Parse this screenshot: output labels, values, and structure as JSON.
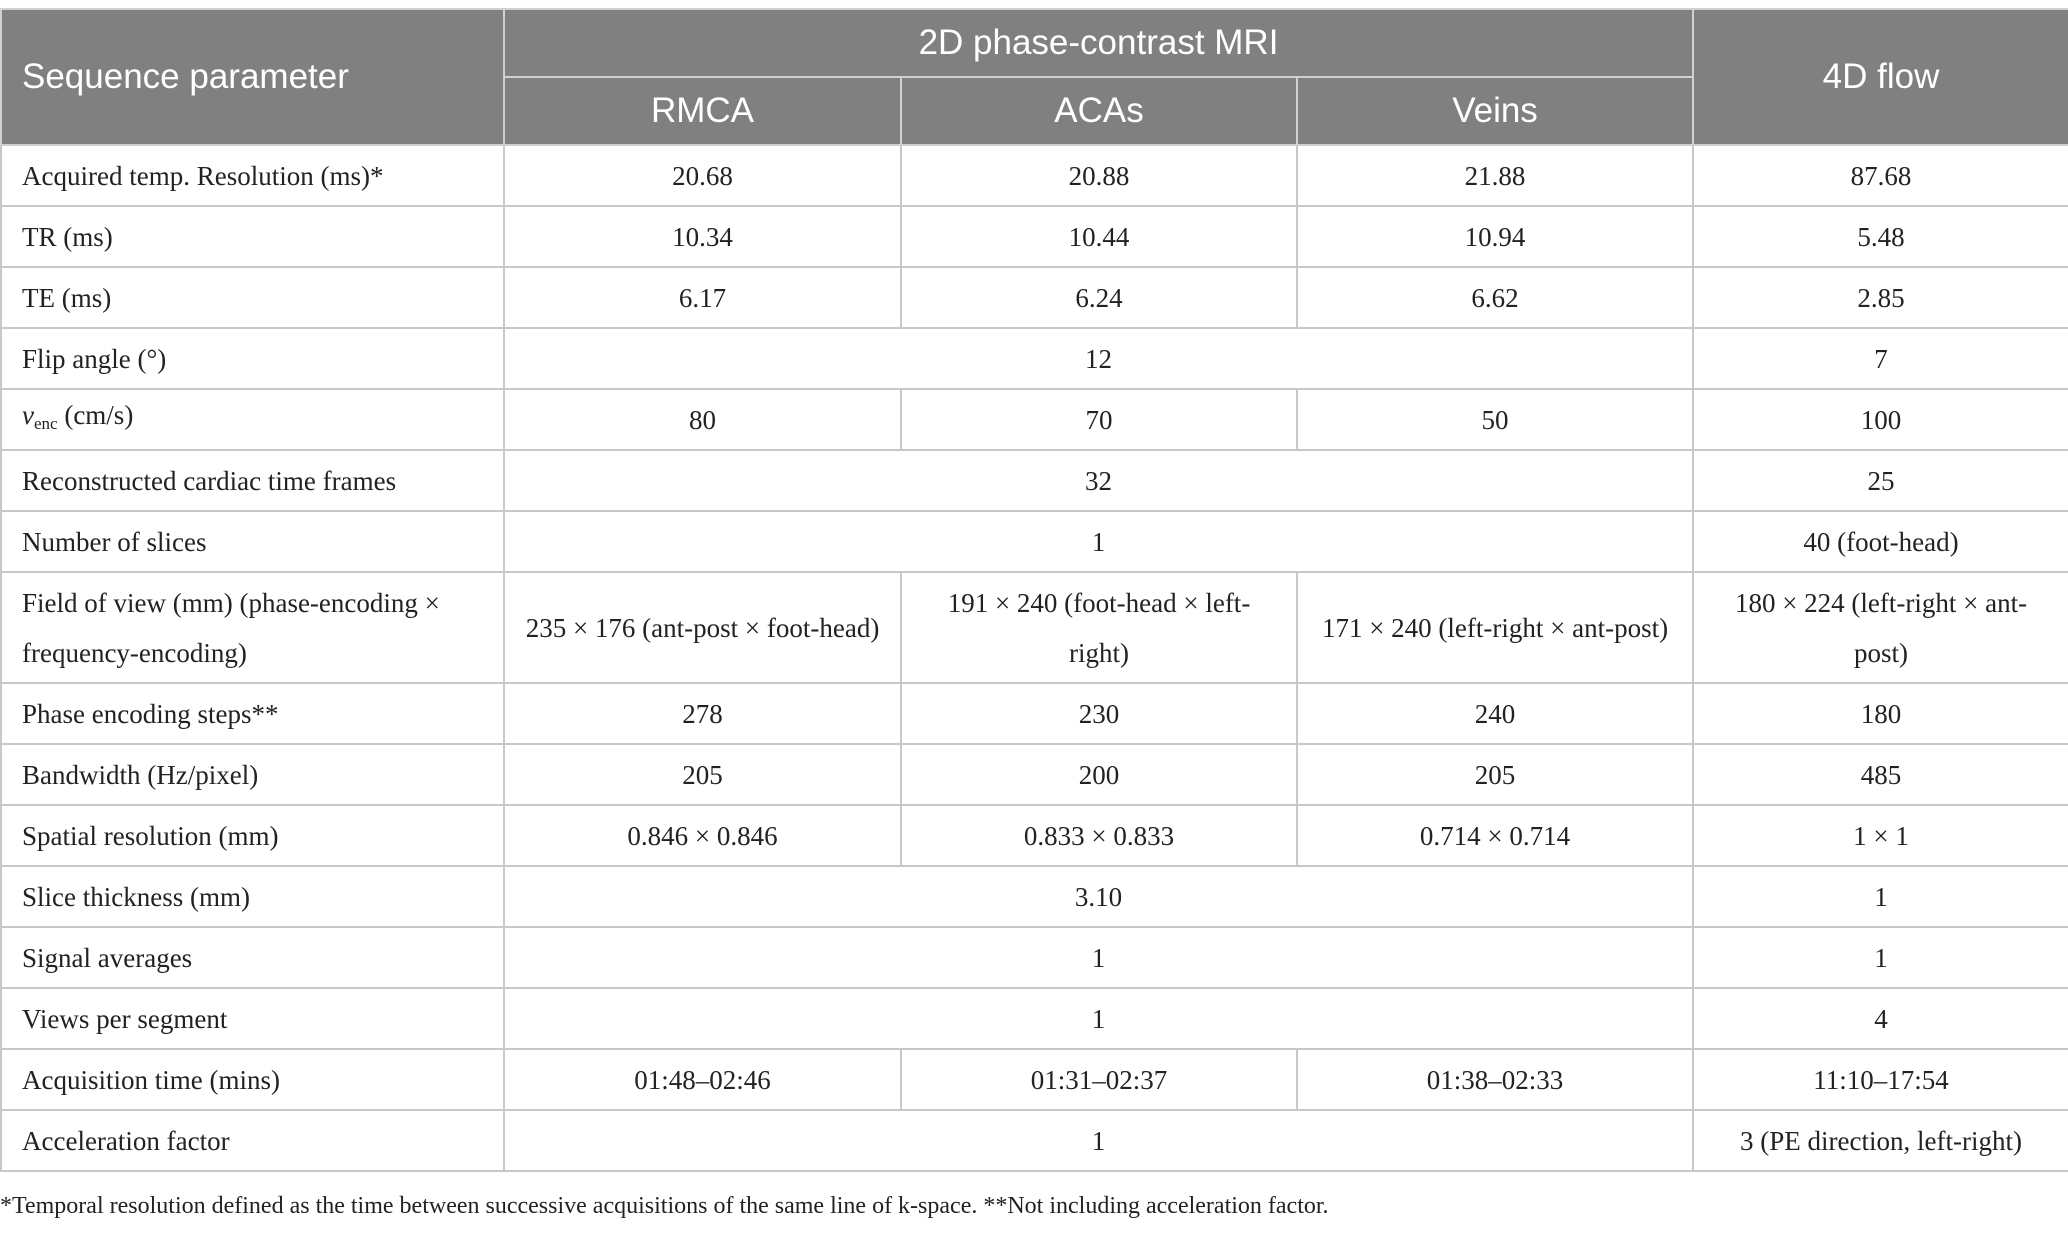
{
  "table": {
    "header": {
      "param_label": "Sequence parameter",
      "group_2d": "2D phase-contrast MRI",
      "group_4d": "4D flow",
      "sub_rmca": "RMCA",
      "sub_acas": "ACAs",
      "sub_veins": "Veins"
    },
    "rows": {
      "temp_res": {
        "label": "Acquired temp. Resolution (ms)*",
        "rmca": "20.68",
        "acas": "20.88",
        "veins": "21.88",
        "flow4d": "87.68"
      },
      "tr": {
        "label": "TR (ms)",
        "rmca": "10.34",
        "acas": "10.44",
        "veins": "10.94",
        "flow4d": "5.48"
      },
      "te": {
        "label": "TE (ms)",
        "rmca": "6.17",
        "acas": "6.24",
        "veins": "6.62",
        "flow4d": "2.85"
      },
      "flip": {
        "label": "Flip angle (°)",
        "pc2d": "12",
        "flow4d": "7"
      },
      "venc": {
        "label_v": "v",
        "label_sub": "enc",
        "label_rest": " (cm/s)",
        "rmca": "80",
        "acas": "70",
        "veins": "50",
        "flow4d": "100"
      },
      "frames": {
        "label": "Reconstructed cardiac time frames",
        "pc2d": "32",
        "flow4d": "25"
      },
      "slices": {
        "label": "Number of slices",
        "pc2d": "1",
        "flow4d": "40 (foot-head)"
      },
      "fov": {
        "label": "Field of view (mm) (phase-encoding × frequency-encoding)",
        "rmca": "235 × 176 (ant-post × foot-head)",
        "acas": "191 × 240 (foot-head × left-right)",
        "veins": "171 × 240 (left-right × ant-post)",
        "flow4d": "180 × 224 (left-right × ant-post)"
      },
      "pe_steps": {
        "label": "Phase encoding steps**",
        "rmca": "278",
        "acas": "230",
        "veins": "240",
        "flow4d": "180"
      },
      "bandwidth": {
        "label": "Bandwidth (Hz/pixel)",
        "rmca": "205",
        "acas": "200",
        "veins": "205",
        "flow4d": "485"
      },
      "spatial": {
        "label": "Spatial resolution (mm)",
        "rmca": "0.846 × 0.846",
        "acas": "0.833 × 0.833",
        "veins": "0.714 × 0.714",
        "flow4d": "1 × 1"
      },
      "thickness": {
        "label": "Slice thickness (mm)",
        "pc2d": "3.10",
        "flow4d": "1"
      },
      "averages": {
        "label": "Signal averages",
        "pc2d": "1",
        "flow4d": "1"
      },
      "views": {
        "label": "Views per segment",
        "pc2d": "1",
        "flow4d": "4"
      },
      "acq_time": {
        "label": "Acquisition time (mins)",
        "rmca": "01:48–02:46",
        "acas": "01:31–02:37",
        "veins": "01:38–02:33",
        "flow4d": "11:10–17:54"
      },
      "accel": {
        "label": "Acceleration factor",
        "pc2d": "1",
        "flow4d": "3 (PE direction, left-right)"
      }
    }
  },
  "footnote": "*Temporal resolution defined as the time between successive acquisitions of the same line of k-space. **Not including acceleration factor."
}
